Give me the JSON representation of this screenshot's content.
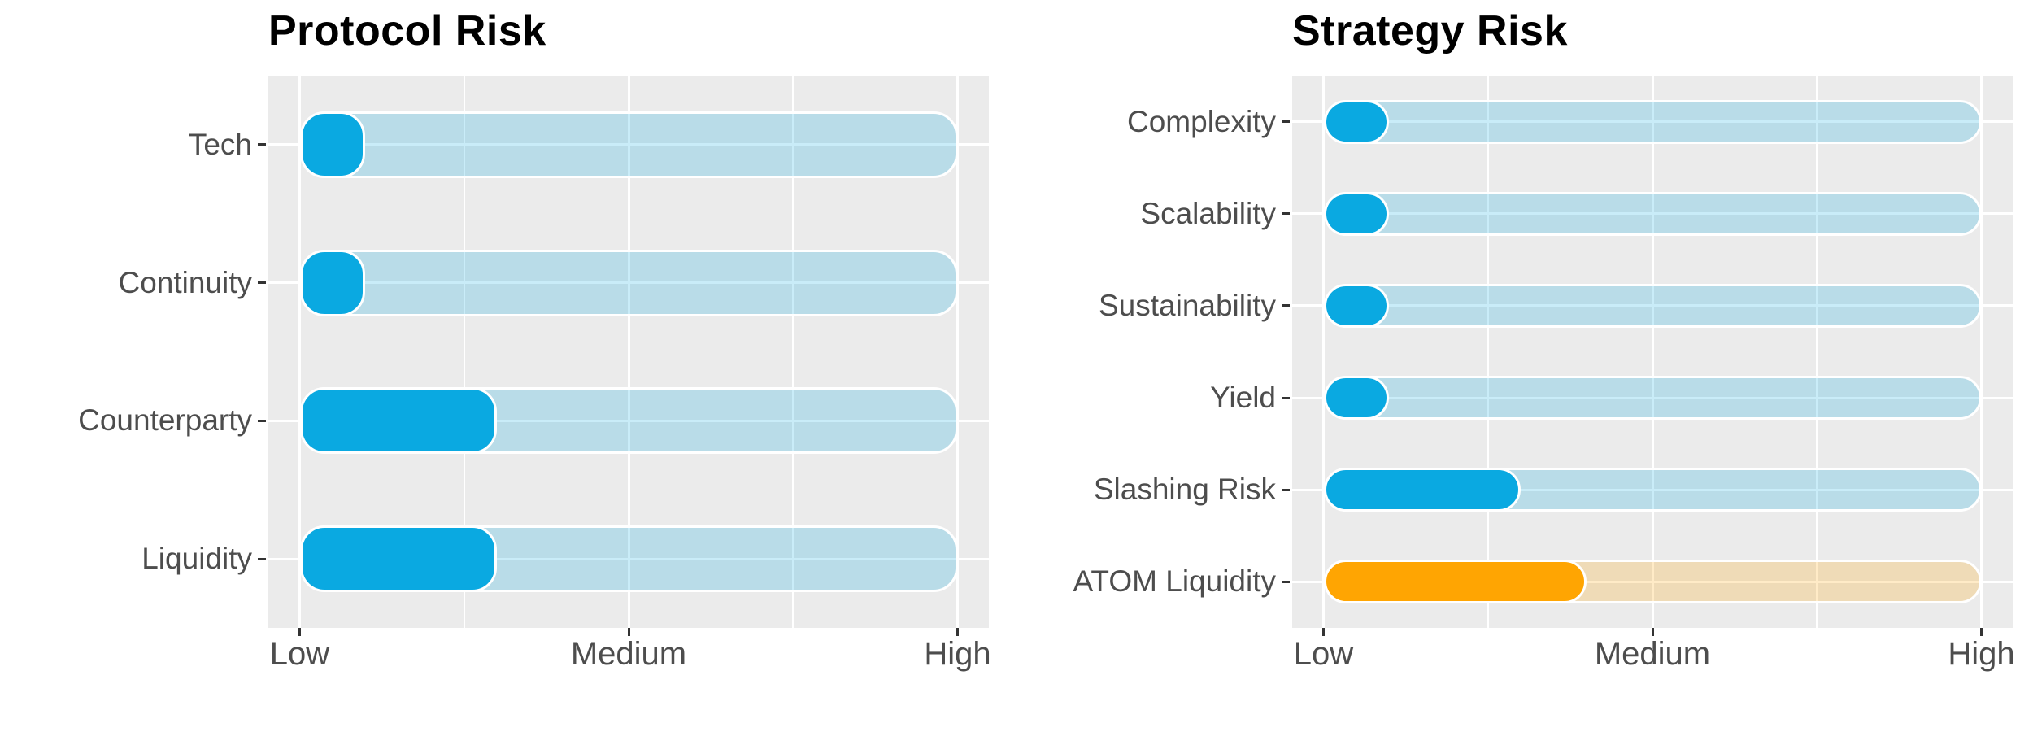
{
  "figure": {
    "background": "#ffffff"
  },
  "colors": {
    "blue": "#0aa9e1",
    "orange": "#ffa502",
    "panel_bg": "#ebebeb",
    "gridline": "#ffffff",
    "axis_text": "#4d4d4d",
    "tick_mark": "#333333",
    "title_text": "#000000",
    "track_opacity": 0.22
  },
  "chart_data": [
    {
      "type": "bar",
      "orientation": "horizontal",
      "title": "Protocol Risk",
      "categories": [
        "Tech",
        "Continuity",
        "Counterparty",
        "Liquidity"
      ],
      "values": [
        1,
        1,
        3,
        3
      ],
      "bar_colors": [
        "#0aa9e1",
        "#0aa9e1",
        "#0aa9e1",
        "#0aa9e1"
      ],
      "track_value": 10,
      "xlim": [
        0,
        10
      ],
      "x_tick_labels": [
        "Low",
        "Medium",
        "High"
      ],
      "x_tick_values": [
        0,
        5,
        10
      ],
      "xlabel": "",
      "ylabel": "",
      "grid": true,
      "legend": "none"
    },
    {
      "type": "bar",
      "orientation": "horizontal",
      "title": "Strategy Risk",
      "categories": [
        "Complexity",
        "Scalability",
        "Sustainability",
        "Yield",
        "Slashing Risk",
        "ATOM Liquidity"
      ],
      "values": [
        1,
        1,
        1,
        1,
        3,
        4
      ],
      "bar_colors": [
        "#0aa9e1",
        "#0aa9e1",
        "#0aa9e1",
        "#0aa9e1",
        "#0aa9e1",
        "#ffa502"
      ],
      "track_value": 10,
      "xlim": [
        0,
        10
      ],
      "x_tick_labels": [
        "Low",
        "Medium",
        "High"
      ],
      "x_tick_values": [
        0,
        5,
        10
      ],
      "xlabel": "",
      "ylabel": "",
      "grid": true,
      "legend": "none"
    }
  ]
}
